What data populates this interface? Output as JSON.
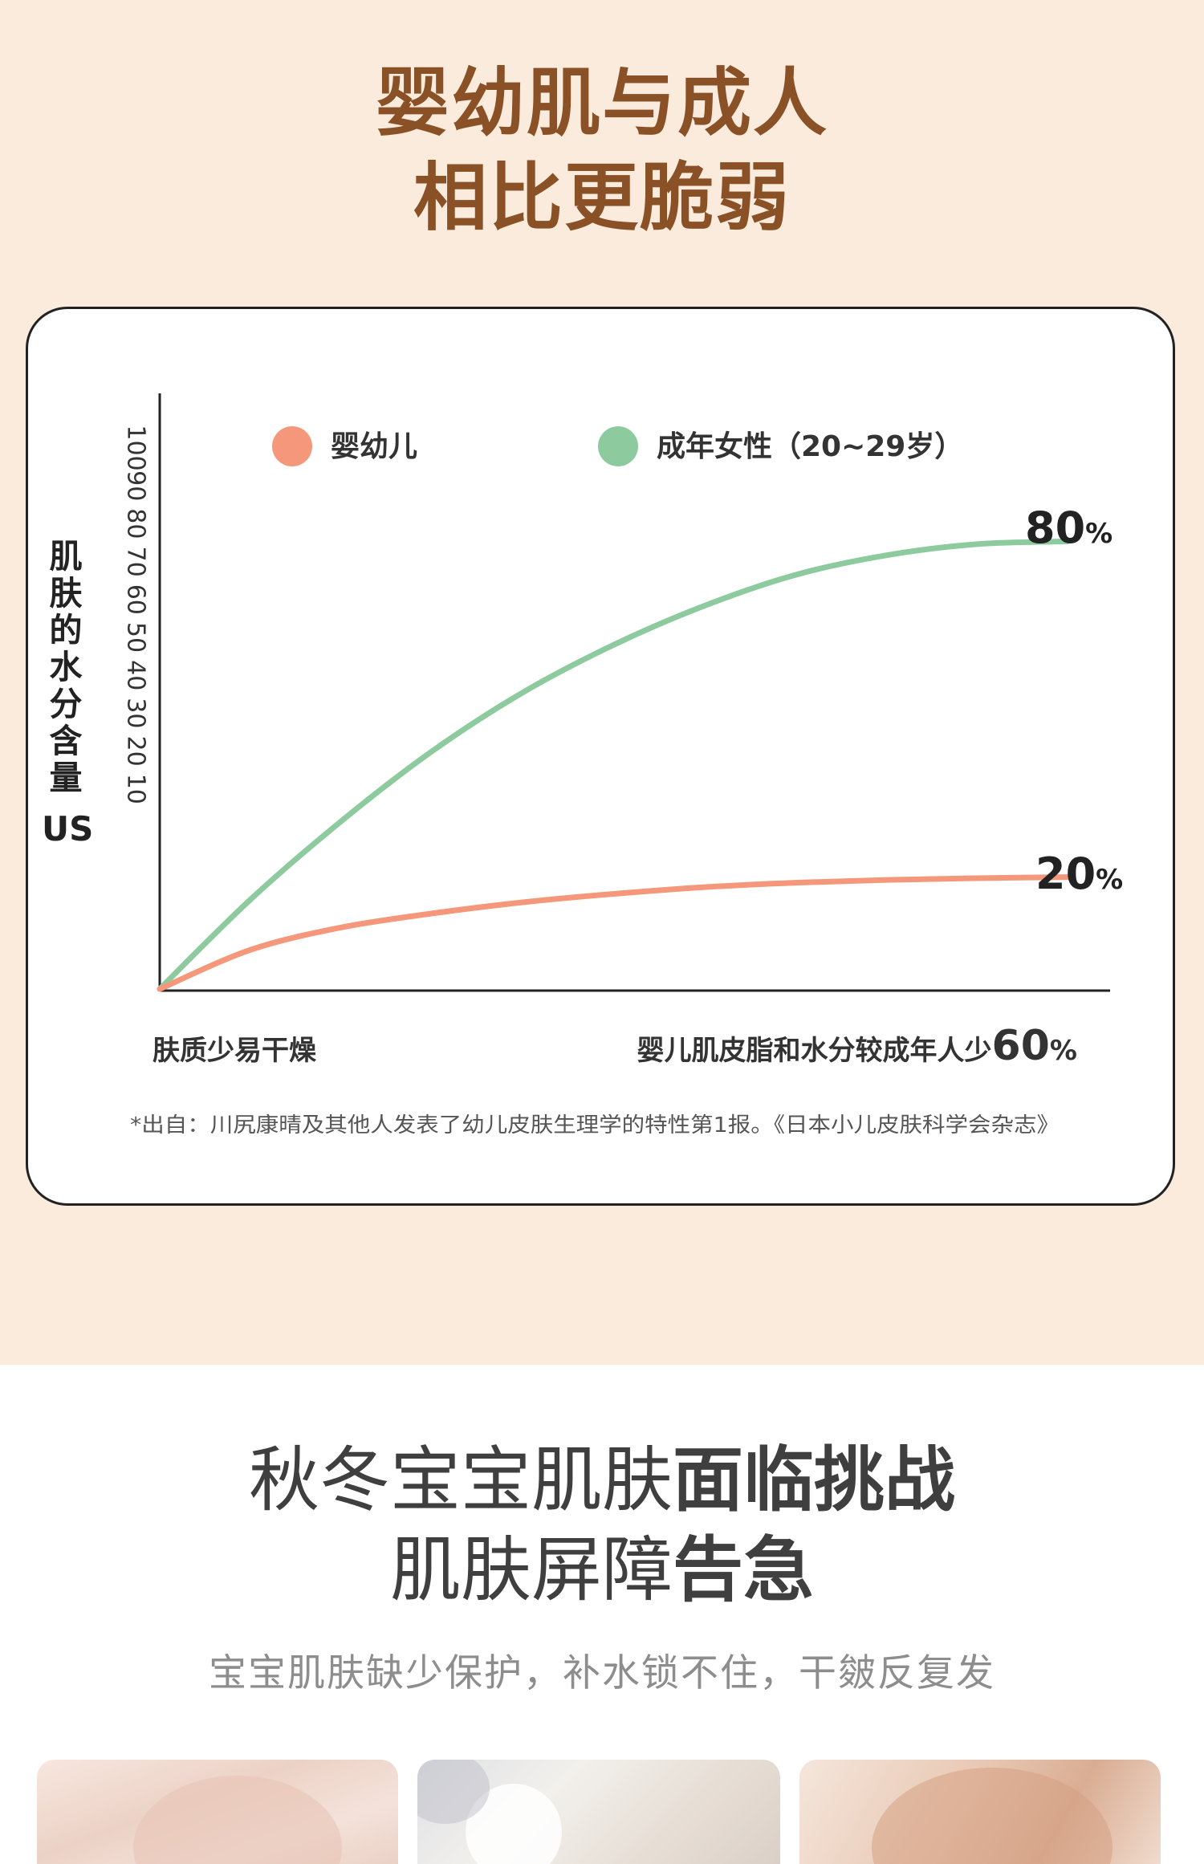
{
  "header": {
    "title_line1": "婴幼肌与成人",
    "title_line2": "相比更脆弱"
  },
  "chart_data": {
    "type": "line",
    "ylabel": "肌肤的水分含量",
    "ylabel_unit": "US",
    "yticks": [
      "100",
      "90",
      "80",
      "70",
      "60",
      "50",
      "40",
      "30",
      "20",
      "10"
    ],
    "ylim": [
      0,
      100
    ],
    "x_left_label": "肤质少易干燥",
    "x_right_label_text": "婴儿肌皮脂和水分较成年人少",
    "x_right_label_num": "60",
    "x_right_label_pct": "%",
    "legend_position": "top",
    "series": [
      {
        "name": "婴幼儿",
        "color": "#f4977a",
        "x": [
          0,
          0.1,
          0.2,
          0.3,
          0.4,
          0.5,
          0.6,
          0.7,
          0.8,
          0.9,
          1.0
        ],
        "values": [
          0,
          7,
          11,
          13.5,
          15.5,
          17,
          18.2,
          19,
          19.5,
          19.8,
          20
        ],
        "end_label_num": "20",
        "end_label_pct": "%"
      },
      {
        "name": "成年女性（20~29岁）",
        "color": "#8dcb9f",
        "x": [
          0,
          0.1,
          0.2,
          0.3,
          0.4,
          0.5,
          0.6,
          0.7,
          0.8,
          0.9,
          1.0
        ],
        "values": [
          0,
          16,
          30,
          42.5,
          53,
          61.5,
          68.5,
          74,
          77.5,
          79.5,
          80
        ],
        "end_label_num": "80",
        "end_label_pct": "%"
      }
    ],
    "footnote": "*出自：川尻康晴及其他人发表了幼儿皮肤生理学的特性第1报。《日本小儿皮肤科学会杂志》"
  },
  "section2": {
    "line1_light": "秋冬宝宝肌肤",
    "line1_bold": "面临挑战",
    "line2_light": "肌肤屏障",
    "line2_bold": "告急",
    "subtitle": "宝宝肌肤缺少保护，补水锁不住，干皴反复发"
  }
}
